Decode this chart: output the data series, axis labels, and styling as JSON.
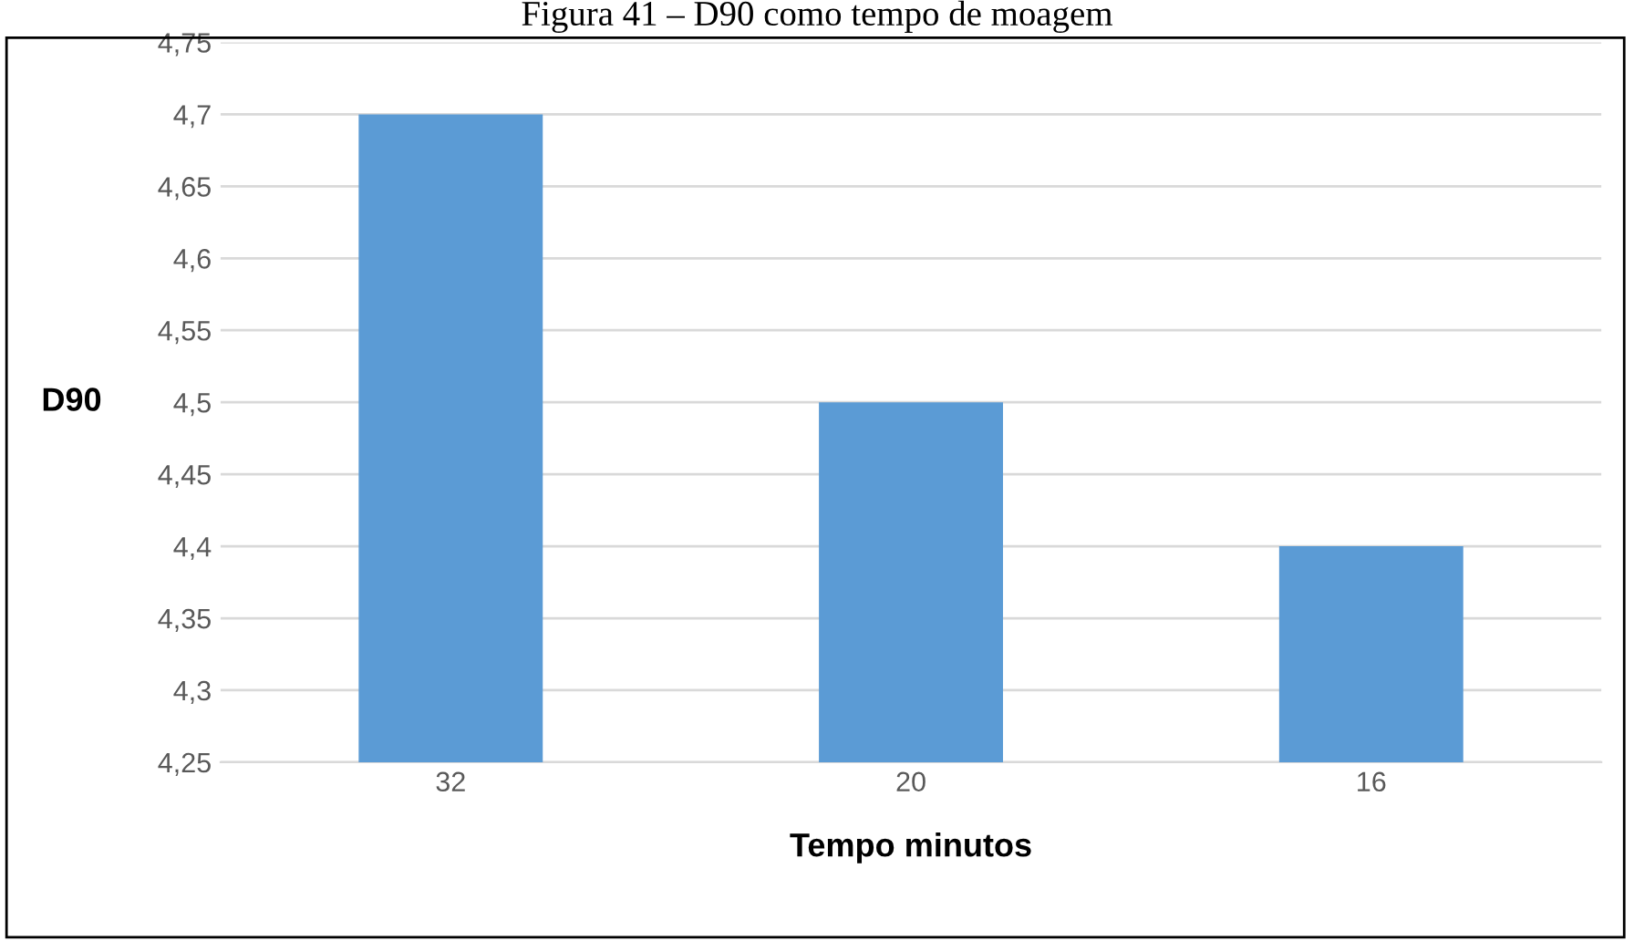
{
  "chart_data": {
    "type": "bar",
    "title": "Figura 41 – D90 como tempo de moagem",
    "xlabel": "Tempo minutos",
    "ylabel": "D90",
    "categories": [
      "32",
      "20",
      "16"
    ],
    "values": [
      4.7,
      4.5,
      4.4
    ],
    "color": "#5b9bd5",
    "ylim": [
      4.25,
      4.75
    ],
    "yticks": [
      {
        "value": 4.25,
        "label": "4,25"
      },
      {
        "value": 4.3,
        "label": "4,3"
      },
      {
        "value": 4.35,
        "label": "4,35"
      },
      {
        "value": 4.4,
        "label": "4,4"
      },
      {
        "value": 4.45,
        "label": "4,45"
      },
      {
        "value": 4.5,
        "label": "4,5"
      },
      {
        "value": 4.55,
        "label": "4,55"
      },
      {
        "value": 4.6,
        "label": "4,6"
      },
      {
        "value": 4.65,
        "label": "4,65"
      },
      {
        "value": 4.7,
        "label": "4,7"
      },
      {
        "value": 4.75,
        "label": "4,75"
      }
    ],
    "grid": "y"
  }
}
